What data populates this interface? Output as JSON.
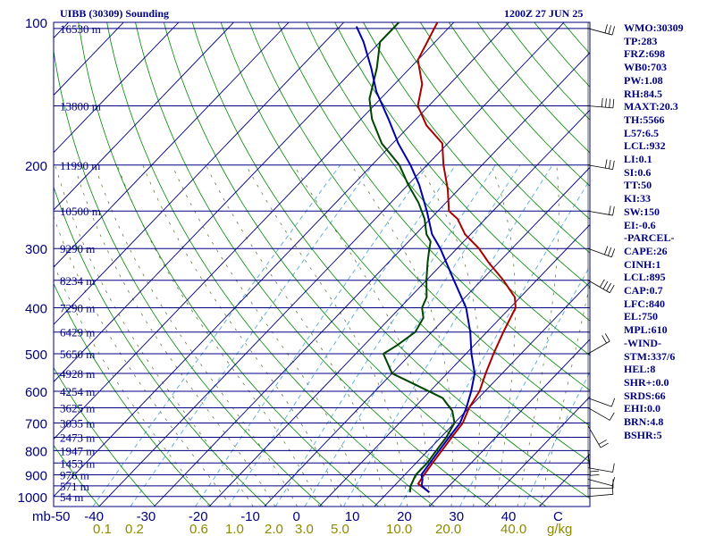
{
  "header": {
    "station": "UIBB (30309) Sounding",
    "time": "1200Z 27 JUN 25"
  },
  "chart_data": {
    "type": "skew-t",
    "pressure_levels": [
      100,
      200,
      300,
      400,
      500,
      600,
      700,
      800,
      900,
      1000
    ],
    "height_labels": [
      {
        "p": 103,
        "label": "16530 m"
      },
      {
        "p": 150,
        "label": "13800 m"
      },
      {
        "p": 200,
        "label": "11990 m"
      },
      {
        "p": 250,
        "label": "10500 m"
      },
      {
        "p": 300,
        "label": "9290 m"
      },
      {
        "p": 350,
        "label": "8234 m"
      },
      {
        "p": 400,
        "label": "7290 m"
      },
      {
        "p": 450,
        "label": "6429 m"
      },
      {
        "p": 500,
        "label": "5650 m"
      },
      {
        "p": 550,
        "label": "4928 m"
      },
      {
        "p": 600,
        "label": "4254 m"
      },
      {
        "p": 650,
        "label": "3625 m"
      },
      {
        "p": 700,
        "label": "3035 m"
      },
      {
        "p": 750,
        "label": "2473 m"
      },
      {
        "p": 800,
        "label": "1947 m"
      },
      {
        "p": 850,
        "label": "1453 m"
      },
      {
        "p": 900,
        "label": "976 m"
      },
      {
        "p": 950,
        "label": "571 m"
      },
      {
        "p": 1000,
        "label": "54 m"
      }
    ],
    "x_ticks": [
      "mb-50",
      "-40",
      "-30",
      "-20",
      "-10",
      "0",
      "10",
      "20",
      "30",
      "40",
      "C"
    ],
    "mixing_ratio_labels": [
      "0.1",
      "0.2",
      "0.6",
      "1.0",
      "2.0",
      "3.0",
      "5.0",
      "10.0",
      "20.0",
      "40.0",
      "g/kg"
    ],
    "series": [
      {
        "name": "temperature",
        "color": "#aa0000",
        "points": [
          [
            980,
            17.5
          ],
          [
            940,
            14
          ],
          [
            900,
            13.5
          ],
          [
            850,
            13
          ],
          [
            800,
            12.5
          ],
          [
            750,
            12
          ],
          [
            700,
            11.5
          ],
          [
            650,
            10
          ],
          [
            600,
            9
          ],
          [
            550,
            7
          ],
          [
            500,
            5
          ],
          [
            450,
            3
          ],
          [
            400,
            1
          ],
          [
            380,
            -1
          ],
          [
            350,
            -6
          ],
          [
            320,
            -12
          ],
          [
            300,
            -16
          ],
          [
            280,
            -21
          ],
          [
            260,
            -25
          ],
          [
            250,
            -28
          ],
          [
            225,
            -32
          ],
          [
            200,
            -37
          ],
          [
            180,
            -41
          ],
          [
            165,
            -47
          ],
          [
            150,
            -52
          ],
          [
            135,
            -55
          ],
          [
            120,
            -60
          ],
          [
            100,
            -63
          ]
        ]
      },
      {
        "name": "dewpoint",
        "color": "#004400",
        "points": [
          [
            980,
            14
          ],
          [
            950,
            13
          ],
          [
            900,
            12
          ],
          [
            850,
            12
          ],
          [
            800,
            11.5
          ],
          [
            750,
            11
          ],
          [
            700,
            10
          ],
          [
            660,
            7.5
          ],
          [
            620,
            3.5
          ],
          [
            580,
            -4
          ],
          [
            550,
            -10
          ],
          [
            500,
            -15
          ],
          [
            480,
            -14
          ],
          [
            450,
            -13
          ],
          [
            420,
            -14
          ],
          [
            400,
            -16
          ],
          [
            380,
            -17
          ],
          [
            350,
            -20
          ],
          [
            320,
            -23
          ],
          [
            300,
            -25
          ],
          [
            290,
            -26
          ],
          [
            280,
            -28
          ],
          [
            260,
            -31
          ],
          [
            240,
            -35
          ],
          [
            220,
            -40
          ],
          [
            200,
            -45
          ],
          [
            180,
            -52
          ],
          [
            160,
            -58
          ],
          [
            145,
            -62
          ],
          [
            125,
            -66
          ],
          [
            110,
            -70
          ],
          [
            100,
            -70
          ]
        ]
      },
      {
        "name": "parcel",
        "color": "#0000aa",
        "points": [
          [
            980,
            17.5
          ],
          [
            950,
            15
          ],
          [
            920,
            14
          ],
          [
            900,
            13
          ],
          [
            850,
            12.5
          ],
          [
            800,
            12
          ],
          [
            750,
            11.5
          ],
          [
            700,
            11
          ],
          [
            650,
            9.5
          ],
          [
            600,
            7.5
          ],
          [
            550,
            5
          ],
          [
            500,
            1
          ],
          [
            450,
            -3
          ],
          [
            400,
            -8
          ],
          [
            350,
            -15
          ],
          [
            300,
            -23
          ],
          [
            280,
            -27
          ],
          [
            250,
            -32
          ],
          [
            220,
            -38
          ],
          [
            200,
            -43
          ],
          [
            180,
            -49
          ],
          [
            160,
            -55
          ],
          [
            140,
            -62
          ],
          [
            125,
            -67
          ],
          [
            110,
            -73
          ],
          [
            102,
            -77
          ]
        ]
      }
    ],
    "wind_barbs": [
      {
        "p": 1000,
        "dir": 265,
        "spd": 5
      },
      {
        "p": 960,
        "dir": 270,
        "spd": 5
      },
      {
        "p": 920,
        "dir": 285,
        "spd": 10
      },
      {
        "p": 870,
        "dir": 280,
        "spd": 10
      },
      {
        "p": 800,
        "dir": 355,
        "spd": 15
      },
      {
        "p": 710,
        "dir": 330,
        "spd": 15
      },
      {
        "p": 650,
        "dir": 300,
        "spd": 10
      },
      {
        "p": 620,
        "dir": 290,
        "spd": 10
      },
      {
        "p": 500,
        "dir": 240,
        "spd": 20
      },
      {
        "p": 350,
        "dir": 300,
        "spd": 35
      },
      {
        "p": 300,
        "dir": 290,
        "spd": 30
      },
      {
        "p": 250,
        "dir": 280,
        "spd": 20
      },
      {
        "p": 200,
        "dir": 280,
        "spd": 30
      },
      {
        "p": 150,
        "dir": 275,
        "spd": 35
      },
      {
        "p": 103,
        "dir": 285,
        "spd": 30
      }
    ],
    "grid": true
  },
  "side": [
    "WMO:30309",
    "TP:283",
    "FRZ:698",
    "WB0:703",
    "PW:1.08",
    "RH:84.5",
    "MAXT:20.3",
    "TH:5566",
    "L57:6.5",
    "LCL:932",
    "LI:0.1",
    "SI:0.6",
    "TT:50",
    "KI:33",
    "SW:150",
    "EI:-0.6",
    "-PARCEL-",
    "CAPE:26",
    "CINH:1",
    "LCL:895",
    "CAP:0.7",
    "LFC:840",
    "EL:750",
    "MPL:610",
    "-WIND-",
    "STM:337/6",
    "HEL:8",
    "SHR+:0.0",
    "SRDS:66",
    "EHI:0.0",
    "BRN:4.8",
    "BSHR:5"
  ],
  "colors": {
    "isobar": "#000080",
    "isotherm": "#000080",
    "dry_adiabat": "#008800",
    "moist_adiabat": "#556b2f",
    "mixing_ratio": "#55aadd",
    "temperature": "#aa0000",
    "dewpoint": "#004400",
    "parcel": "#0000aa",
    "label": "#000080",
    "mixing_label": "#8b8b00"
  }
}
